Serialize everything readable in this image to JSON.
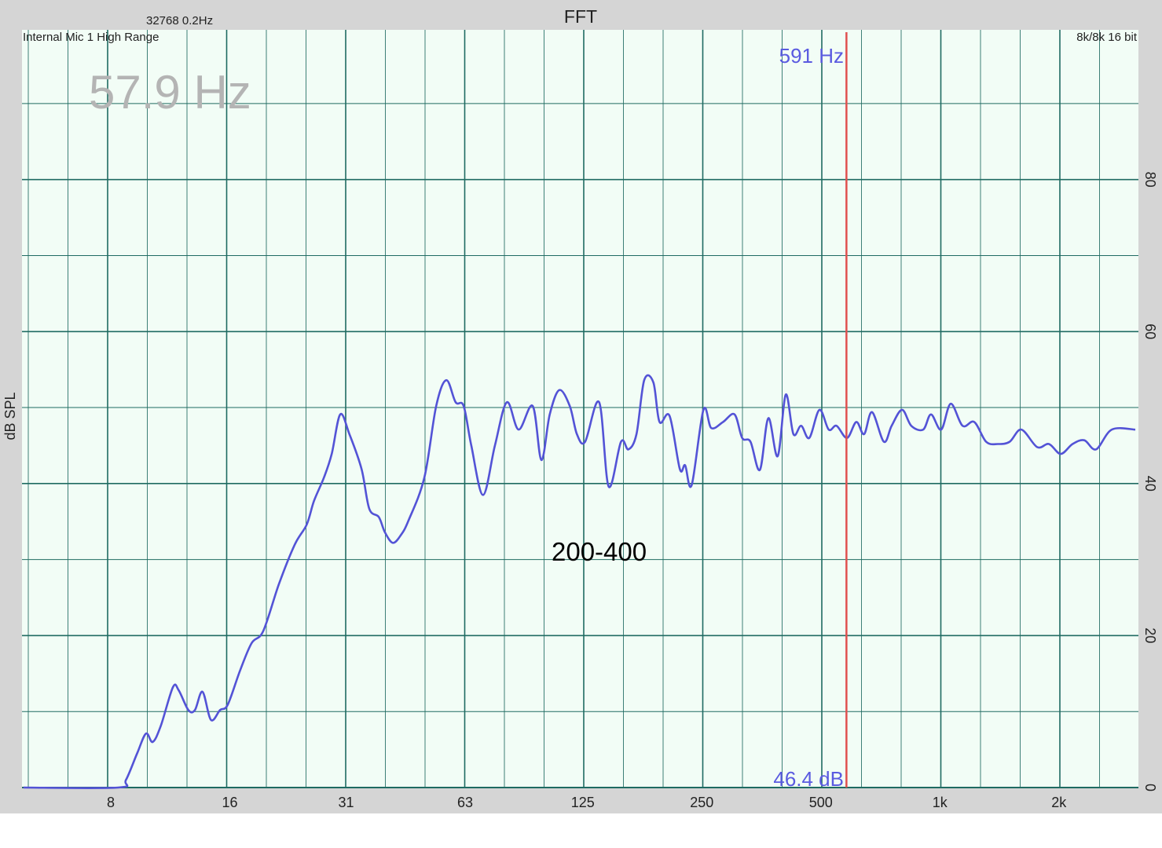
{
  "header": {
    "title": "FFT",
    "fft_info": "32768  0.2Hz",
    "input_device": "Internal Mic 1 High Range",
    "format_info": "8k/8k 16 bit",
    "peak_readout": "57.9 Hz"
  },
  "cursor": {
    "frequency_label": "591 Hz",
    "level_label": "46.4 dB",
    "frequency_hz": 591,
    "color": "#e05050"
  },
  "annotation": "200-400",
  "colors": {
    "plot_background": "#f2fdf6",
    "grid": "#1f6b62",
    "trace": "#5353d6",
    "frame": "#d5d5d5",
    "readout_text": "#5a5ae0",
    "peak_text": "#b4b4b4"
  },
  "chart_data": {
    "type": "line",
    "title": "FFT",
    "xlabel": "",
    "ylabel": "dB SPL",
    "x_scale": "log",
    "xlim": [
      4.9,
      3200
    ],
    "ylim": [
      0,
      100
    ],
    "grid": true,
    "x_ticks": [
      {
        "value": 8,
        "label": "8"
      },
      {
        "value": 16,
        "label": "16"
      },
      {
        "value": 31.5,
        "label": "31"
      },
      {
        "value": 63,
        "label": "63"
      },
      {
        "value": 125,
        "label": "125"
      },
      {
        "value": 250,
        "label": "250"
      },
      {
        "value": 500,
        "label": "500"
      },
      {
        "value": 1000,
        "label": "1k"
      },
      {
        "value": 2000,
        "label": "2k"
      }
    ],
    "y_ticks": [
      {
        "value": 0,
        "label": "0"
      },
      {
        "value": 20,
        "label": "20"
      },
      {
        "value": 40,
        "label": "40"
      },
      {
        "value": 60,
        "label": "60"
      },
      {
        "value": 80,
        "label": "80"
      }
    ],
    "series": [
      {
        "points": [
          [
            4.9,
            0
          ],
          [
            8.5,
            0
          ],
          [
            8.9,
            1.0
          ],
          [
            9.5,
            4.5
          ],
          [
            10.0,
            7.1
          ],
          [
            10.4,
            6.0
          ],
          [
            10.9,
            8.1
          ],
          [
            11.7,
            13.2
          ],
          [
            12.1,
            12.8
          ],
          [
            12.8,
            10.2
          ],
          [
            13.3,
            10.2
          ],
          [
            13.9,
            12.6
          ],
          [
            14.6,
            8.9
          ],
          [
            15.4,
            10.2
          ],
          [
            16.1,
            10.9
          ],
          [
            17.3,
            15.4
          ],
          [
            18.5,
            19.0
          ],
          [
            19.8,
            20.6
          ],
          [
            21.7,
            26.8
          ],
          [
            23.8,
            32.0
          ],
          [
            25.5,
            34.6
          ],
          [
            26.6,
            37.7
          ],
          [
            28.2,
            40.8
          ],
          [
            29.5,
            43.9
          ],
          [
            31,
            49.1
          ],
          [
            32.7,
            46.5
          ],
          [
            35.1,
            41.9
          ],
          [
            36.7,
            36.7
          ],
          [
            38.8,
            35.6
          ],
          [
            40.2,
            33.6
          ],
          [
            42.1,
            32.2
          ],
          [
            44.1,
            33.2
          ],
          [
            46.1,
            35.1
          ],
          [
            50.6,
            40.8
          ],
          [
            54.2,
            50.2
          ],
          [
            57.5,
            53.6
          ],
          [
            60.7,
            50.7
          ],
          [
            63.6,
            50.2
          ],
          [
            66.5,
            45.0
          ],
          [
            71.2,
            38.5
          ],
          [
            76.3,
            45.0
          ],
          [
            81.8,
            50.7
          ],
          [
            87.6,
            47.1
          ],
          [
            95.1,
            50.2
          ],
          [
            100,
            43.1
          ],
          [
            105,
            49.1
          ],
          [
            111,
            52.3
          ],
          [
            118,
            50.2
          ],
          [
            123,
            46.5
          ],
          [
            129,
            45.5
          ],
          [
            140,
            50.7
          ],
          [
            148,
            39.6
          ],
          [
            159,
            45.5
          ],
          [
            166,
            44.5
          ],
          [
            174,
            46.5
          ],
          [
            182,
            53.6
          ],
          [
            192,
            53.3
          ],
          [
            199,
            48.1
          ],
          [
            211,
            48.9
          ],
          [
            224,
            41.9
          ],
          [
            231,
            42.4
          ],
          [
            240,
            39.8
          ],
          [
            257,
            49.7
          ],
          [
            269,
            47.3
          ],
          [
            288,
            48.1
          ],
          [
            308,
            49.1
          ],
          [
            322,
            46.0
          ],
          [
            338,
            45.5
          ],
          [
            357,
            41.8
          ],
          [
            375,
            48.6
          ],
          [
            396,
            43.6
          ],
          [
            415,
            51.7
          ],
          [
            434,
            46.5
          ],
          [
            454,
            47.6
          ],
          [
            476,
            46.0
          ],
          [
            505,
            49.7
          ],
          [
            533,
            47.1
          ],
          [
            558,
            47.6
          ],
          [
            593,
            46.0
          ],
          [
            626,
            48.1
          ],
          [
            655,
            46.5
          ],
          [
            686,
            49.4
          ],
          [
            735,
            45.5
          ],
          [
            769,
            47.6
          ],
          [
            817,
            49.7
          ],
          [
            862,
            47.6
          ],
          [
            924,
            47.1
          ],
          [
            967,
            49.1
          ],
          [
            1026,
            47.1
          ],
          [
            1085,
            50.5
          ],
          [
            1162,
            47.6
          ],
          [
            1244,
            48.1
          ],
          [
            1333,
            45.5
          ],
          [
            1427,
            45.2
          ],
          [
            1529,
            45.5
          ],
          [
            1637,
            47.1
          ],
          [
            1794,
            44.8
          ],
          [
            1922,
            45.2
          ],
          [
            2058,
            43.9
          ],
          [
            2205,
            45.2
          ],
          [
            2361,
            45.7
          ],
          [
            2529,
            44.5
          ],
          [
            2771,
            47.1
          ],
          [
            3178,
            47.1
          ]
        ]
      }
    ]
  }
}
